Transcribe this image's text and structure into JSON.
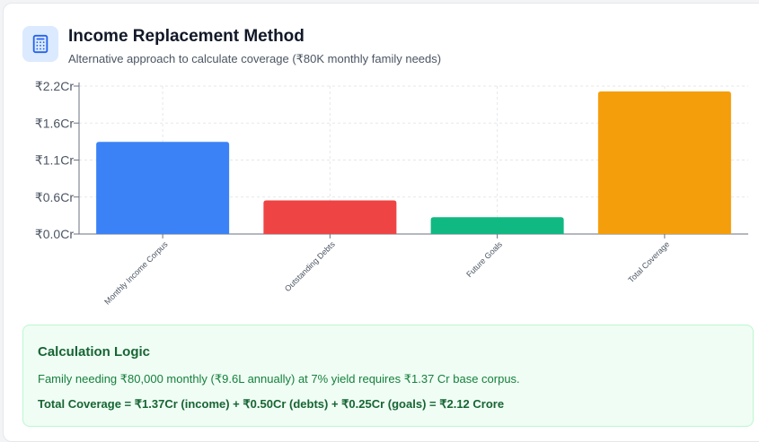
{
  "header": {
    "title": "Income Replacement Method",
    "subtitle": "Alternative approach to calculate coverage (₹80K monthly family needs)",
    "icon": "calculator-icon"
  },
  "chart_data": {
    "type": "bar",
    "categories": [
      "Monthly Income Corpus",
      "Outstanding Debts",
      "Future Goals",
      "Total Coverage"
    ],
    "values": [
      1.37,
      0.5,
      0.25,
      2.12
    ],
    "colors": [
      "#3b82f6",
      "#ef4444",
      "#10b981",
      "#f59e0b"
    ],
    "yticks": [
      "₹0.0Cr",
      "₹0.6Cr",
      "₹1.1Cr",
      "₹1.6Cr",
      "₹2.2Cr"
    ],
    "ylim": [
      0,
      2.2
    ],
    "grid": true
  },
  "logic": {
    "title": "Calculation Logic",
    "line1": "Family needing ₹80,000 monthly (₹9.6L annually) at 7% yield requires ₹1.37 Cr base corpus.",
    "line2": "Total Coverage = ₹1.37Cr (income) + ₹0.50Cr (debts) + ₹0.25Cr (goals) = ₹2.12 Crore"
  }
}
